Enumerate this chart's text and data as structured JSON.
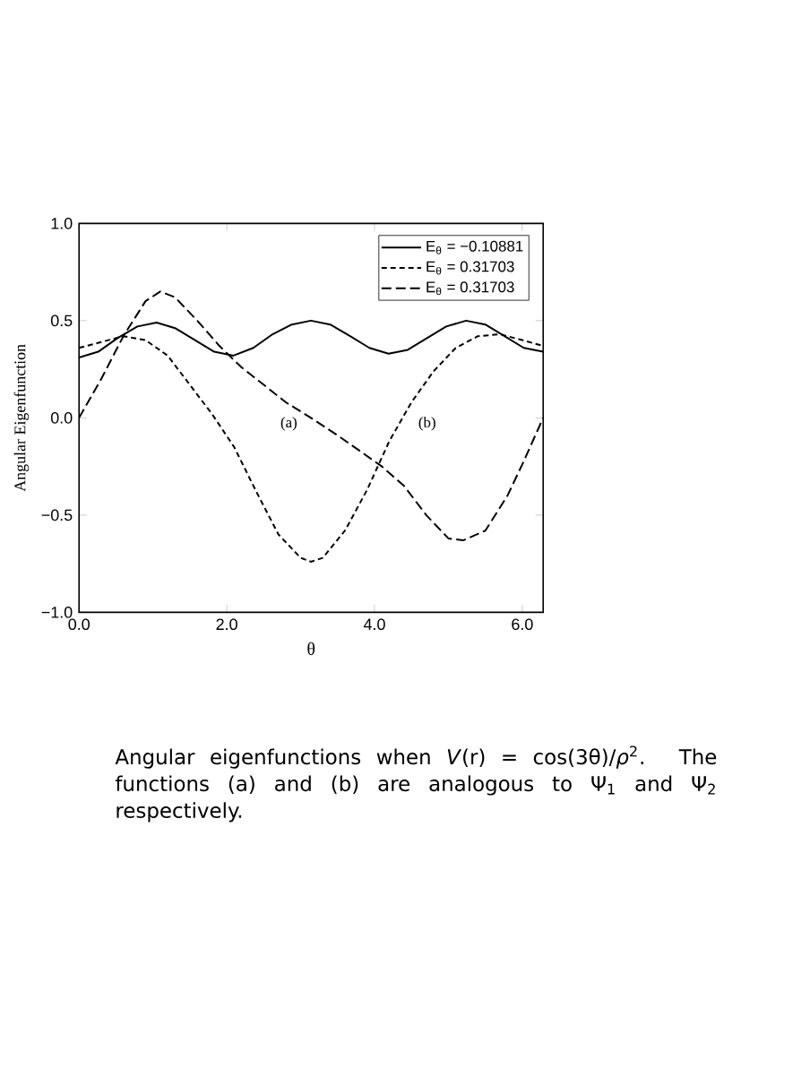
{
  "chart_data": {
    "type": "line",
    "xlabel": "θ",
    "ylabel": "Angular Eigenfunction",
    "xlim": [
      0,
      6.2832
    ],
    "ylim": [
      -1,
      1
    ],
    "xticks": [
      {
        "value": 0,
        "label": "0.0"
      },
      {
        "value": 2,
        "label": "2.0"
      },
      {
        "value": 4,
        "label": "4.0"
      },
      {
        "value": 6,
        "label": "6.0"
      }
    ],
    "yticks": [
      {
        "value": -1,
        "label": "−1.0"
      },
      {
        "value": -0.5,
        "label": "−0.5"
      },
      {
        "value": 0,
        "label": "0.0"
      },
      {
        "value": 0.5,
        "label": "0.5"
      },
      {
        "value": 1,
        "label": "1.0"
      }
    ],
    "legend": "top right",
    "grid": false,
    "series": [
      {
        "name": "E$_{θ}$ = −0.10881",
        "color": "#000000",
        "line_style": "solid",
        "x": [
          0,
          0.26,
          0.52,
          0.79,
          1.05,
          1.31,
          1.57,
          1.83,
          2.09,
          2.36,
          2.62,
          2.88,
          3.14,
          3.4,
          3.67,
          3.93,
          4.19,
          4.45,
          4.71,
          4.97,
          5.24,
          5.5,
          5.76,
          6.02,
          6.283
        ],
        "values": [
          0.31,
          0.34,
          0.41,
          0.47,
          0.49,
          0.46,
          0.4,
          0.34,
          0.32,
          0.36,
          0.43,
          0.48,
          0.5,
          0.48,
          0.42,
          0.36,
          0.33,
          0.35,
          0.41,
          0.47,
          0.5,
          0.48,
          0.42,
          0.36,
          0.34
        ]
      },
      {
        "name": "E$_{θ}$ =  0.31703",
        "color": "#000000",
        "line_style": "dashed",
        "x": [
          0,
          0.3,
          0.6,
          0.9,
          1.2,
          1.5,
          1.8,
          2.1,
          2.4,
          2.7,
          3.0,
          3.14,
          3.3,
          3.6,
          3.9,
          4.2,
          4.5,
          4.8,
          5.1,
          5.4,
          5.7,
          6.0,
          6.283
        ],
        "values": [
          0.36,
          0.39,
          0.42,
          0.4,
          0.32,
          0.17,
          0.02,
          -0.15,
          -0.38,
          -0.6,
          -0.72,
          -0.74,
          -0.72,
          -0.58,
          -0.37,
          -0.12,
          0.08,
          0.24,
          0.36,
          0.42,
          0.43,
          0.4,
          0.37
        ]
      },
      {
        "name": "E$_{θ}$ =  0.31703",
        "color": "#000000",
        "line_style": "dashed",
        "x": [
          0,
          0.3,
          0.6,
          0.9,
          1.1,
          1.3,
          1.6,
          1.9,
          2.2,
          2.5,
          2.8,
          3.14,
          3.5,
          3.8,
          4.1,
          4.4,
          4.7,
          5.0,
          5.2,
          5.5,
          5.8,
          6.0,
          6.283
        ],
        "values": [
          0.0,
          0.2,
          0.42,
          0.6,
          0.65,
          0.62,
          0.5,
          0.37,
          0.26,
          0.17,
          0.08,
          0.0,
          -0.09,
          -0.17,
          -0.25,
          -0.35,
          -0.5,
          -0.62,
          -0.63,
          -0.58,
          -0.4,
          -0.24,
          0.0
        ]
      }
    ],
    "annotations": [
      "(a)",
      "(b)",
      "Angular eigenfunctions when *V*(r) = cos(3θ)/*ρ*$^{2}$. The functions (a) and (b) are analogous to Ψ$_{1}$ and Ψ$_{2}$ respectively."
    ]
  }
}
